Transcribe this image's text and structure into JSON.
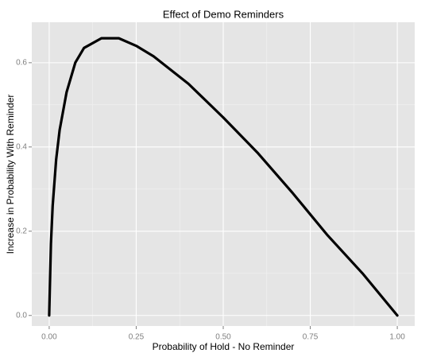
{
  "chart_data": {
    "type": "line",
    "title": "Effect of Demo Reminders",
    "x_label": "Probability of Hold - No Reminder",
    "y_label": "Increase in Probability With Reminder",
    "x": [
      0,
      0.005,
      0.01,
      0.02,
      0.03,
      0.05,
      0.075,
      0.1,
      0.15,
      0.2,
      0.25,
      0.3,
      0.4,
      0.5,
      0.6,
      0.7,
      0.8,
      0.9,
      1.0
    ],
    "series": [
      {
        "color": "#000000",
        "values": [
          0,
          0.17,
          0.26,
          0.37,
          0.44,
          0.53,
          0.6,
          0.635,
          0.658,
          0.658,
          0.64,
          0.615,
          0.55,
          0.47,
          0.385,
          0.29,
          0.19,
          0.1,
          0
        ]
      }
    ],
    "xlim": [
      -0.05,
      1.05
    ],
    "ylim": [
      -0.025,
      0.696
    ],
    "xticks": [
      {
        "value": 0,
        "label": "0.00"
      },
      0.25,
      {
        "value": 0.5,
        "label": "0.50"
      },
      0.75,
      {
        "value": 1,
        "label": "1.00"
      }
    ],
    "yticks": [
      {
        "value": 0,
        "label": "0.0"
      },
      0.2,
      0.4,
      0.6
    ],
    "grid": true
  }
}
